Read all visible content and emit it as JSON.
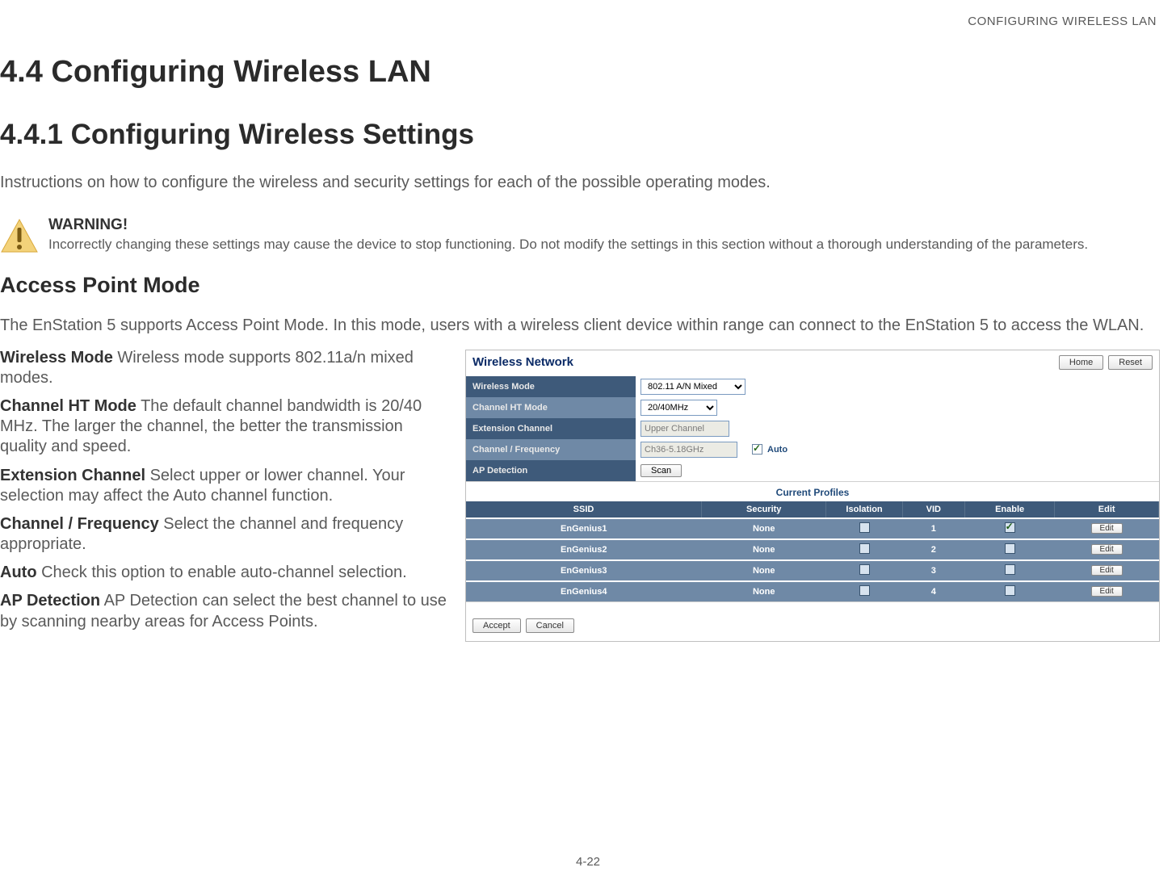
{
  "running_header": "CONFIGURING WIRELESS LAN",
  "page_number": "4-22",
  "h1": "4.4 Configuring Wireless LAN",
  "h2": "4.4.1 Configuring Wireless Settings",
  "intro": "Instructions on how to configure the wireless and security settings for each of the possible operating modes.",
  "warning": {
    "heading": "WARNING!",
    "body": "Incorrectly changing these settings may cause the device to stop functioning. Do not modify the settings in this section without a thorough understanding of the parameters.",
    "icon_fill": "#e9b44c",
    "icon_glyph": "!"
  },
  "mode": {
    "heading": "Access Point Mode",
    "desc": "The EnStation 5 supports Access Point Mode. In this mode, users with a wireless client device within range can connect to the EnStation 5 to access the WLAN."
  },
  "defs": [
    {
      "term": "Wireless Mode",
      "text": "Wireless mode supports 802.11a/n mixed modes."
    },
    {
      "term": "Channel HT Mode",
      "text": "The default channel bandwidth is 20/40 MHz. The larger the channel, the better the transmission quality and speed."
    },
    {
      "term": "Extension Channel",
      "text": "Select upper or lower channel. Your selection may affect the Auto channel function."
    },
    {
      "term": "Channel / Frequency",
      "text": "Select the channel and frequency appropriate."
    },
    {
      "term": "Auto",
      "text": "Check this option to enable auto-channel selection."
    },
    {
      "term": "AP Detection",
      "text": "AP Detection can select the best channel to use by scanning nearby areas for Access Points."
    }
  ],
  "panel": {
    "title": "Wireless Network",
    "buttons": {
      "home": "Home",
      "reset": "Reset"
    },
    "rows": {
      "wireless_mode": {
        "label": "Wireless Mode",
        "value": "802.11 A/N Mixed"
      },
      "channel_ht": {
        "label": "Channel HT Mode",
        "value": "20/40MHz"
      },
      "ext_channel": {
        "label": "Extension Channel",
        "value": "Upper Channel",
        "disabled": true
      },
      "chan_freq": {
        "label": "Channel / Frequency",
        "value": "Ch36-5.18GHz",
        "disabled": true,
        "auto_label": "Auto",
        "auto_checked": true
      },
      "ap_detect": {
        "label": "AP Detection",
        "button": "Scan"
      }
    },
    "profiles": {
      "caption": "Current Profiles",
      "columns": [
        "SSID",
        "Security",
        "Isolation",
        "VID",
        "Enable",
        "Edit"
      ],
      "edit_label": "Edit",
      "rows": [
        {
          "ssid": "EnGenius1",
          "security": "None",
          "isolation": false,
          "vid": "1",
          "enable": true
        },
        {
          "ssid": "EnGenius2",
          "security": "None",
          "isolation": false,
          "vid": "2",
          "enable": false
        },
        {
          "ssid": "EnGenius3",
          "security": "None",
          "isolation": false,
          "vid": "3",
          "enable": false
        },
        {
          "ssid": "EnGenius4",
          "security": "None",
          "isolation": false,
          "vid": "4",
          "enable": false
        }
      ]
    },
    "footer": {
      "accept": "Accept",
      "cancel": "Cancel"
    },
    "colors": {
      "header_dark": "#3e5a7a",
      "header_mid": "#6f89a6",
      "title_color": "#0a2a66"
    }
  }
}
